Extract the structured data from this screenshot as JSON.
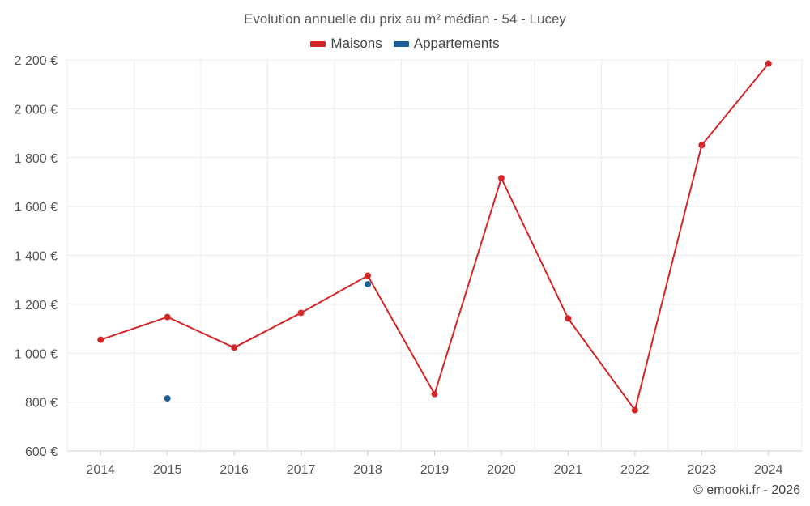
{
  "chart_data": {
    "type": "line",
    "title": "Evolution annuelle du prix au m² médian - 54 - Lucey",
    "categories": [
      "2014",
      "2015",
      "2016",
      "2017",
      "2018",
      "2019",
      "2020",
      "2021",
      "2022",
      "2023",
      "2024"
    ],
    "series": [
      {
        "name": "Maisons",
        "color": "#d62728",
        "values": [
          1055,
          1148,
          1023,
          1165,
          1317,
          833,
          1716,
          1142,
          767,
          1851,
          2185
        ]
      },
      {
        "name": "Appartements",
        "color": "#1f5f99",
        "values": [
          null,
          815,
          null,
          null,
          1282,
          null,
          null,
          null,
          null,
          null,
          null
        ]
      }
    ],
    "ylim": [
      600,
      2200
    ],
    "yticks": [
      600,
      800,
      1000,
      1200,
      1400,
      1600,
      1800,
      2000,
      2200
    ],
    "ytick_labels": [
      "600 €",
      "800 €",
      "1 000 €",
      "1 200 €",
      "1 400 €",
      "1 600 €",
      "1 800 €",
      "2 000 €",
      "2 200 €"
    ],
    "xlabel": "",
    "ylabel": "",
    "grid": true,
    "legend_position": "top-center"
  },
  "credit": "© emooki.fr - 2026"
}
